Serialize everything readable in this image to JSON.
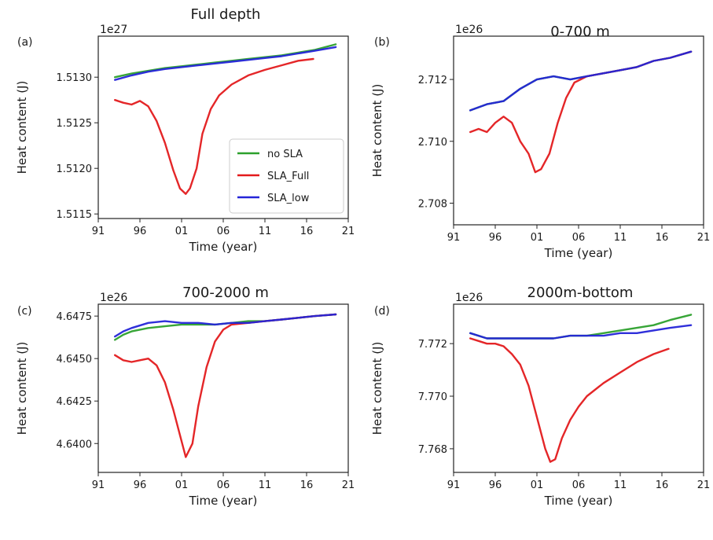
{
  "chart_data": [
    {
      "type": "line",
      "panel_label": "(a)",
      "title": "Full depth",
      "sci_multiplier": "1e27",
      "xlabel": "Time (year)",
      "ylabel": "Heat content (J)",
      "x_ticks": [
        "91",
        "96",
        "01",
        "06",
        "11",
        "16",
        "21"
      ],
      "xlim": [
        1991,
        2021
      ],
      "y_ticks": [
        "1.5115",
        "1.5120",
        "1.5125",
        "1.5130"
      ],
      "ylim": [
        1.51145,
        1.51345
      ],
      "legend": {
        "placement": "center-right",
        "entries": [
          "no SLA",
          "SLA_Full",
          "SLA_low"
        ]
      },
      "series": [
        {
          "name": "no SLA",
          "color": "#2ca02c",
          "x": [
            1993,
            1995,
            1997,
            1999,
            2001,
            2003,
            2005,
            2007,
            2009,
            2011,
            2013,
            2015,
            2017,
            2019.5
          ],
          "y": [
            1.513,
            1.51304,
            1.51307,
            1.5131,
            1.51312,
            1.51314,
            1.51316,
            1.51318,
            1.5132,
            1.51322,
            1.51324,
            1.51327,
            1.5133,
            1.51336
          ]
        },
        {
          "name": "SLA_Full",
          "color": "#e31a1c",
          "x": [
            1993,
            1994,
            1995,
            1996,
            1997,
            1998,
            1999,
            2000,
            2000.8,
            2001.5,
            2002,
            2002.8,
            2003.5,
            2004.5,
            2005.5,
            2007,
            2009,
            2011,
            2013,
            2015,
            2016.8
          ],
          "y": [
            1.51275,
            1.51272,
            1.5127,
            1.51274,
            1.51268,
            1.51252,
            1.51228,
            1.51198,
            1.51178,
            1.51172,
            1.51178,
            1.512,
            1.51238,
            1.51265,
            1.5128,
            1.51292,
            1.51302,
            1.51308,
            1.51313,
            1.51318,
            1.5132
          ]
        },
        {
          "name": "SLA_low",
          "color": "#2424d8",
          "x": [
            1993,
            1995,
            1997,
            1999,
            2001,
            2003,
            2005,
            2007,
            2009,
            2011,
            2013,
            2015,
            2017,
            2019.5
          ],
          "y": [
            1.51297,
            1.51302,
            1.51306,
            1.51309,
            1.51311,
            1.51313,
            1.51315,
            1.51317,
            1.51319,
            1.51321,
            1.51323,
            1.51326,
            1.51329,
            1.51333
          ]
        }
      ]
    },
    {
      "type": "line",
      "panel_label": "(b)",
      "title": "0-700 m",
      "sci_multiplier": "1e26",
      "xlabel": "Time (year)",
      "ylabel": "Heat content (J)",
      "x_ticks": [
        "91",
        "96",
        "01",
        "06",
        "11",
        "16",
        "21"
      ],
      "xlim": [
        1991,
        2021
      ],
      "y_ticks": [
        "2.708",
        "2.710",
        "2.712"
      ],
      "ylim": [
        2.7073,
        2.7134
      ],
      "series": [
        {
          "name": "no SLA",
          "color": "#2ca02c",
          "x": [
            1993,
            1995,
            1997,
            1999,
            2001,
            2003,
            2005,
            2007,
            2009,
            2011,
            2013,
            2015,
            2017,
            2019.5
          ],
          "y": [
            2.711,
            2.7112,
            2.7113,
            2.7117,
            2.712,
            2.7121,
            2.712,
            2.7121,
            2.7122,
            2.7123,
            2.7124,
            2.7126,
            2.7127,
            2.7129
          ]
        },
        {
          "name": "SLA_Full",
          "color": "#e31a1c",
          "x": [
            1993,
            1994,
            1995,
            1996,
            1997,
            1998,
            1999,
            2000,
            2000.8,
            2001.5,
            2002.5,
            2003.5,
            2004.5,
            2005.5,
            2007,
            2009,
            2011,
            2013,
            2015,
            2017,
            2019.5
          ],
          "y": [
            2.7103,
            2.7104,
            2.7103,
            2.7106,
            2.7108,
            2.7106,
            2.71,
            2.7096,
            2.709,
            2.7091,
            2.7096,
            2.7106,
            2.7114,
            2.7119,
            2.7121,
            2.7122,
            2.7123,
            2.7124,
            2.7126,
            2.7127,
            2.7129
          ]
        },
        {
          "name": "SLA_low",
          "color": "#2424d8",
          "x": [
            1993,
            1995,
            1997,
            1999,
            2001,
            2003,
            2005,
            2007,
            2009,
            2011,
            2013,
            2015,
            2017,
            2019.5
          ],
          "y": [
            2.711,
            2.7112,
            2.7113,
            2.7117,
            2.712,
            2.7121,
            2.712,
            2.7121,
            2.7122,
            2.7123,
            2.7124,
            2.7126,
            2.7127,
            2.7129
          ]
        }
      ]
    },
    {
      "type": "line",
      "panel_label": "(c)",
      "title": "700-2000 m",
      "sci_multiplier": "1e26",
      "xlabel": "Time (year)",
      "ylabel": "Heat content (J)",
      "x_ticks": [
        "91",
        "96",
        "01",
        "06",
        "11",
        "16",
        "21"
      ],
      "xlim": [
        1991,
        2021
      ],
      "y_ticks": [
        "4.6400",
        "4.6425",
        "4.6450",
        "4.6475"
      ],
      "ylim": [
        4.6383,
        4.6482
      ],
      "series": [
        {
          "name": "no SLA",
          "color": "#2ca02c",
          "x": [
            1993,
            1994,
            1995,
            1997,
            1999,
            2001,
            2003,
            2005,
            2007,
            2009,
            2011,
            2013,
            2015,
            2017,
            2019.5
          ],
          "y": [
            4.6461,
            4.6464,
            4.6466,
            4.6468,
            4.6469,
            4.647,
            4.647,
            4.647,
            4.6471,
            4.6472,
            4.6472,
            4.6473,
            4.6474,
            4.6475,
            4.6476
          ]
        },
        {
          "name": "SLA_Full",
          "color": "#e31a1c",
          "x": [
            1993,
            1994,
            1995,
            1996,
            1997,
            1998,
            1999,
            2000,
            2000.8,
            2001.5,
            2002.3,
            2003,
            2004,
            2005,
            2006,
            2007,
            2009,
            2011,
            2013,
            2015,
            2017,
            2019.5
          ],
          "y": [
            4.6452,
            4.6449,
            4.6448,
            4.6449,
            4.645,
            4.6446,
            4.6436,
            4.642,
            4.6405,
            4.6392,
            4.64,
            4.6422,
            4.6445,
            4.646,
            4.6467,
            4.647,
            4.6471,
            4.6472,
            4.6473,
            4.6474,
            4.6475,
            4.6476
          ]
        },
        {
          "name": "SLA_low",
          "color": "#2424d8",
          "x": [
            1993,
            1994,
            1995,
            1997,
            1999,
            2001,
            2003,
            2005,
            2007,
            2009,
            2011,
            2013,
            2015,
            2017,
            2019.5
          ],
          "y": [
            4.6463,
            4.6466,
            4.6468,
            4.6471,
            4.6472,
            4.6471,
            4.6471,
            4.647,
            4.6471,
            4.6471,
            4.6472,
            4.6473,
            4.6474,
            4.6475,
            4.6476
          ]
        }
      ]
    },
    {
      "type": "line",
      "panel_label": "(d)",
      "title": "2000m-bottom",
      "sci_multiplier": "1e26",
      "xlabel": "Time (year)",
      "ylabel": "Heat content (J)",
      "x_ticks": [
        "91",
        "96",
        "01",
        "06",
        "11",
        "16",
        "21"
      ],
      "xlim": [
        1991,
        2021
      ],
      "y_ticks": [
        "7.768",
        "7.770",
        "7.772"
      ],
      "ylim": [
        7.7671,
        7.7735
      ],
      "series": [
        {
          "name": "no SLA",
          "color": "#2ca02c",
          "x": [
            1993,
            1995,
            1997,
            1999,
            2001,
            2003,
            2005,
            2007,
            2009,
            2011,
            2013,
            2015,
            2017,
            2019.5
          ],
          "y": [
            7.7724,
            7.7722,
            7.7722,
            7.7722,
            7.7722,
            7.7722,
            7.7723,
            7.7723,
            7.7724,
            7.7725,
            7.7726,
            7.7727,
            7.7729,
            7.7731
          ]
        },
        {
          "name": "SLA_Full",
          "color": "#e31a1c",
          "x": [
            1993,
            1994,
            1995,
            1996,
            1997,
            1998,
            1999,
            2000,
            2001,
            2002,
            2002.6,
            2003.2,
            2004,
            2005,
            2006,
            2007,
            2009,
            2011,
            2013,
            2015,
            2016.8
          ],
          "y": [
            7.7722,
            7.7721,
            7.772,
            7.772,
            7.7719,
            7.7716,
            7.7712,
            7.7704,
            7.7692,
            7.768,
            7.7675,
            7.7676,
            7.7684,
            7.7691,
            7.7696,
            7.77,
            7.7705,
            7.7709,
            7.7713,
            7.7716,
            7.7718
          ]
        },
        {
          "name": "SLA_low",
          "color": "#2424d8",
          "x": [
            1993,
            1995,
            1997,
            1999,
            2001,
            2003,
            2005,
            2007,
            2009,
            2011,
            2013,
            2015,
            2017,
            2019.5
          ],
          "y": [
            7.7724,
            7.7722,
            7.7722,
            7.7722,
            7.7722,
            7.7722,
            7.7723,
            7.7723,
            7.7723,
            7.7724,
            7.7724,
            7.7725,
            7.7726,
            7.7727
          ]
        }
      ]
    }
  ]
}
